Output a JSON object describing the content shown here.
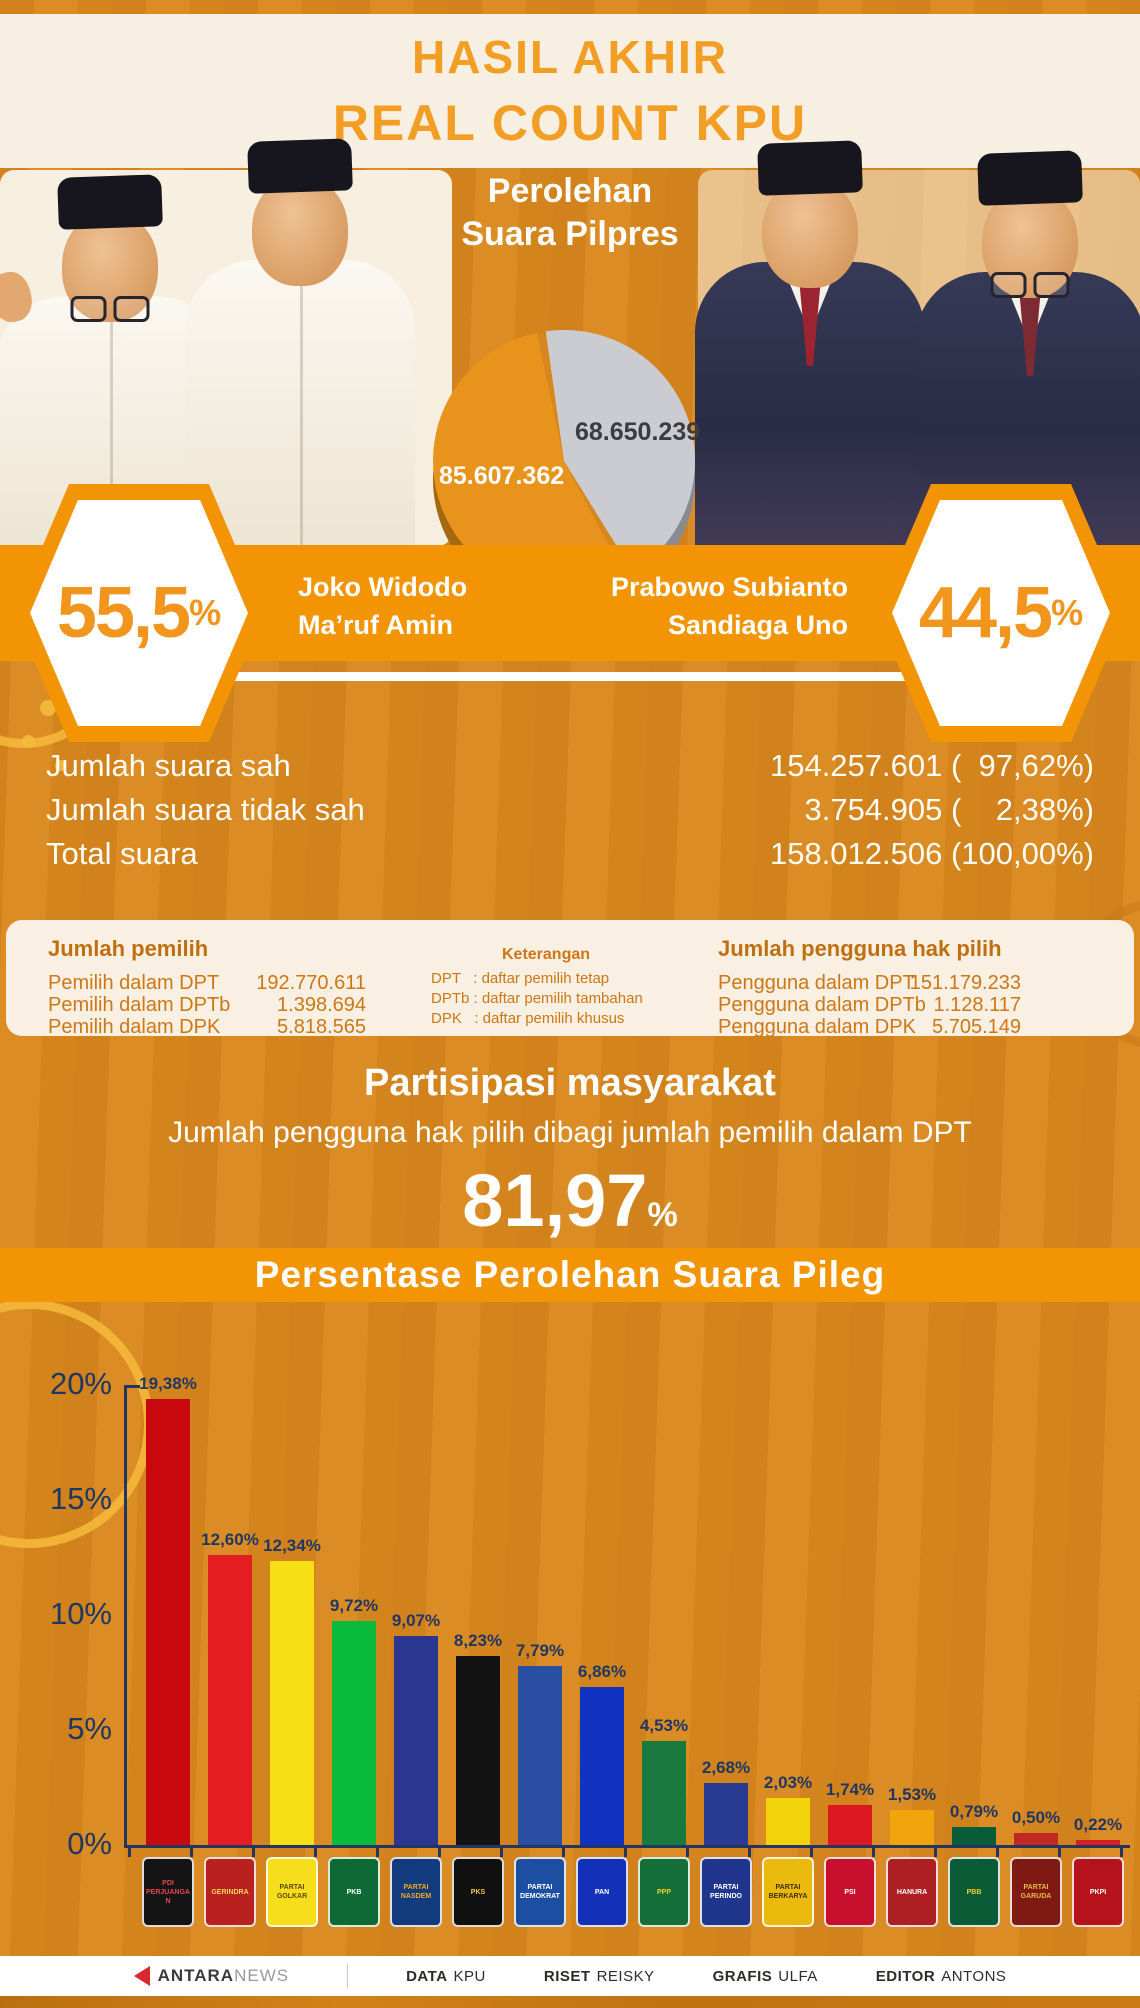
{
  "header": {
    "line1": "HASIL AKHIR",
    "line2": "REAL COUNT KPU"
  },
  "pilpres": {
    "title_line1": "Perolehan",
    "title_line2": "Suara Pilpres",
    "left": {
      "votes": "85.607.362",
      "percent": "55,5",
      "percent_unit": "%",
      "name_line1": "Joko Widodo",
      "name_line2": "Ma’ruf Amin"
    },
    "right": {
      "votes": "68.650.239",
      "percent": "44,5",
      "percent_unit": "%",
      "name_line1": "Prabowo Subianto",
      "name_line2": "Sandiaga Uno"
    }
  },
  "totals": {
    "rows": [
      {
        "label": "Jumlah suara sah",
        "value": "154.257.601 (  97,62%)"
      },
      {
        "label": "Jumlah suara tidak sah",
        "value": "3.754.905 (    2,38%)"
      },
      {
        "label": "Total suara",
        "value": "158.012.506 (100,00%)"
      }
    ]
  },
  "voters_panel": {
    "left": {
      "title": "Jumlah pemilih",
      "rows": [
        {
          "label": "Pemilih dalam DPT",
          "value": "192.770.611"
        },
        {
          "label": "Pemilih dalam DPTb",
          "value": "1.398.694"
        },
        {
          "label": "Pemilih dalam DPK",
          "value": "5.818.565"
        }
      ]
    },
    "legend": {
      "title": "Keterangan",
      "rows": [
        "DPT   : daftar pemilih tetap",
        "DPTb : daftar pemilih tambahan",
        "DPK   : daftar pemilih khusus"
      ]
    },
    "right": {
      "title": "Jumlah pengguna hak pilih",
      "rows": [
        {
          "label": "Pengguna dalam DPT",
          "value": "151.179.233"
        },
        {
          "label": "Pengguna dalam DPTb",
          "value": "1.128.117"
        },
        {
          "label": "Pengguna dalam DPK",
          "value": "5.705.149"
        }
      ]
    }
  },
  "participation": {
    "title": "Partisipasi masyarakat",
    "subtitle": "Jumlah pengguna hak pilih dibagi jumlah pemilih dalam DPT",
    "value": "81,97",
    "unit": "%"
  },
  "pileg_banner": "Persentase Perolehan Suara Pileg",
  "chart_data": [
    {
      "type": "pie",
      "title": "Perolehan Suara Pilpres",
      "slices": [
        {
          "label": "Joko Widodo - Ma'ruf Amin",
          "votes": 85607362,
          "votes_display": "85.607.362",
          "percent": 55.5,
          "color": "#E8941C"
        },
        {
          "label": "Prabowo Subianto - Sandiaga Uno",
          "votes": 68650239,
          "votes_display": "68.650.239",
          "percent": 44.5,
          "color": "#CBCCD2"
        }
      ],
      "background": "#D8871E"
    },
    {
      "type": "bar",
      "title": "Persentase Perolehan Suara Pileg",
      "ylim": [
        0,
        20
      ],
      "yticks": [
        "0%",
        "5%",
        "10%",
        "15%",
        "20%"
      ],
      "grid": false,
      "categories": [
        "PDI Perjuangan",
        "Gerindra",
        "Partai Golkar",
        "PKB",
        "Partai NasDem",
        "PKS",
        "Partai Demokrat",
        "PAN",
        "PPP",
        "Partai Perindo",
        "Partai Berkarya",
        "PSI",
        "Hanura",
        "PBB",
        "Partai Garuda",
        "PKPI"
      ],
      "values": [
        19.38,
        12.6,
        12.34,
        9.72,
        9.07,
        8.23,
        7.79,
        6.86,
        4.53,
        2.68,
        2.03,
        1.74,
        1.53,
        0.79,
        0.5,
        0.22
      ],
      "value_labels": [
        "19,38%",
        "12,60%",
        "12,34%",
        "9,72%",
        "9,07%",
        "8,23%",
        "7,79%",
        "6,86%",
        "4,53%",
        "2,68%",
        "2,03%",
        "1,74%",
        "1,53%",
        "0,79%",
        "0,50%",
        "0,22%"
      ],
      "bar_colors": [
        "#C9080D",
        "#E51D23",
        "#F6DF15",
        "#0ABB3B",
        "#2A3690",
        "#121212",
        "#2A4FA2",
        "#1034C0",
        "#187A3F",
        "#283B91",
        "#F1D40B",
        "#DC1822",
        "#F0A50C",
        "#0A5C38",
        "#C02822",
        "#DA1C22"
      ],
      "logos": [
        {
          "label": "PDI PERJUANGAN",
          "bg": "#141414",
          "fg": "#E8474D"
        },
        {
          "label": "GERINDRA",
          "bg": "#B9211E",
          "fg": "#F4D562"
        },
        {
          "label": "PARTAI GOLKAR",
          "bg": "#F7DE1C",
          "fg": "#5A4A00"
        },
        {
          "label": "PKB",
          "bg": "#0E6A35",
          "fg": "#FFFFFF"
        },
        {
          "label": "PARTAI NASDEM",
          "bg": "#123B7D",
          "fg": "#F4A81D"
        },
        {
          "label": "PKS",
          "bg": "#101010",
          "fg": "#F5C84C"
        },
        {
          "label": "PARTAI DEMOKRAT",
          "bg": "#1C4FA1",
          "fg": "#FFFFFF"
        },
        {
          "label": "PAN",
          "bg": "#1330B8",
          "fg": "#FFFFFF"
        },
        {
          "label": "PPP",
          "bg": "#156F38",
          "fg": "#F1D02A"
        },
        {
          "label": "PARTAI PERINDO",
          "bg": "#20368D",
          "fg": "#FFFFFF"
        },
        {
          "label": "PARTAI BERKARYA",
          "bg": "#E9B90B",
          "fg": "#3F3000"
        },
        {
          "label": "PSI",
          "bg": "#C8102E",
          "fg": "#FFFFFF"
        },
        {
          "label": "HANURA",
          "bg": "#AD1F23",
          "fg": "#FFFFFF"
        },
        {
          "label": "PBB",
          "bg": "#0B5B36",
          "fg": "#F2CB2E"
        },
        {
          "label": "PARTAI GARUDA",
          "bg": "#7E1A12",
          "fg": "#E9B84C"
        },
        {
          "label": "PKPI",
          "bg": "#B5121B",
          "fg": "#FFFFFF"
        }
      ]
    }
  ],
  "footer": {
    "brand_bold": "ANTARA",
    "brand_light": "NEWS",
    "credits": [
      {
        "role": "DATA",
        "name": "KPU"
      },
      {
        "role": "RISET",
        "name": "REISKY"
      },
      {
        "role": "GRAFIS",
        "name": "ULFA"
      },
      {
        "role": "EDITOR",
        "name": "ANTONS"
      }
    ]
  }
}
